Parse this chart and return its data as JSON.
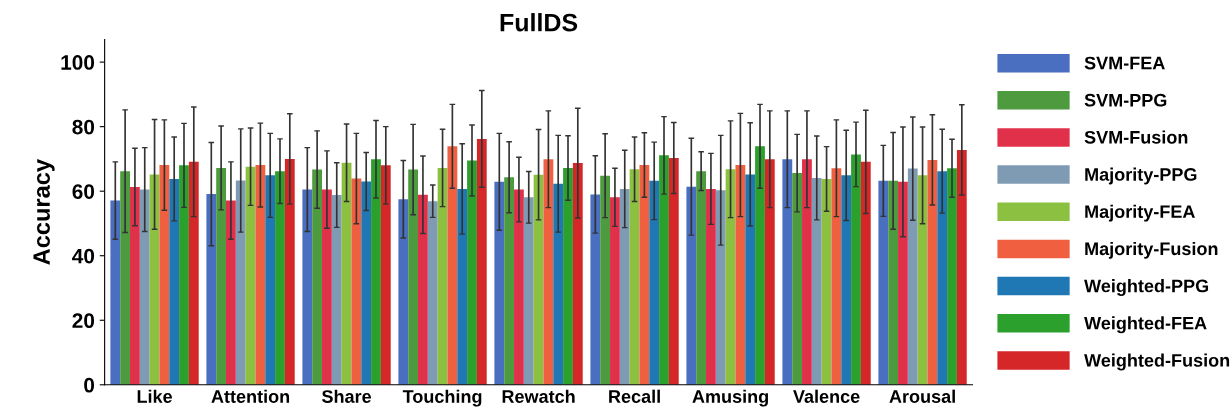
{
  "chart_data": {
    "type": "bar",
    "title": "FullDS",
    "ylabel": "Accuracy",
    "categories": [
      "Like",
      "Attention",
      "Share",
      "Touching",
      "Rewatch",
      "Recall",
      "Amusing",
      "Valence",
      "Arousal"
    ],
    "ylim": [
      0,
      107
    ],
    "yticks": [
      0,
      20,
      40,
      60,
      80,
      100
    ],
    "grid": false,
    "legend": "right",
    "series": [
      {
        "name": "SVM-FEA",
        "color": "#4a6fc0",
        "values": [
          57.1,
          59.1,
          60.5,
          57.5,
          62.9,
          59.0,
          61.4,
          69.9,
          63.2
        ],
        "errors": [
          12,
          16,
          13,
          12,
          15,
          12,
          15,
          15,
          11
        ]
      },
      {
        "name": "SVM-PPG",
        "color": "#4e9a3e",
        "values": [
          66.2,
          67.2,
          66.7,
          66.7,
          64.3,
          64.8,
          66.2,
          65.6,
          63.2
        ],
        "errors": [
          19,
          13,
          12,
          14,
          11,
          13,
          6,
          12,
          15
        ]
      },
      {
        "name": "SVM-Fusion",
        "color": "#e0304a",
        "values": [
          61.3,
          57.1,
          60.5,
          58.9,
          60.5,
          58.1,
          60.7,
          69.9,
          62.9
        ],
        "errors": [
          12,
          12,
          12,
          12,
          10,
          9,
          11,
          15,
          17
        ]
      },
      {
        "name": "Majority-PPG",
        "color": "#7f9bb3",
        "values": [
          60.5,
          63.3,
          58.8,
          56.9,
          58.1,
          60.7,
          60.3,
          64.1,
          67.0
        ],
        "errors": [
          13,
          16,
          10,
          5,
          8,
          12,
          17,
          13,
          16
        ]
      },
      {
        "name": "Majority-FEA",
        "color": "#8cc040",
        "values": [
          65.2,
          67.6,
          68.8,
          67.2,
          65.1,
          66.8,
          66.8,
          63.8,
          64.9
        ],
        "errors": [
          17,
          12,
          12,
          12,
          14,
          10,
          15,
          10,
          15
        ]
      },
      {
        "name": "Majority-Fusion",
        "color": "#f06040",
        "values": [
          68.1,
          68.1,
          63.9,
          73.9,
          69.9,
          68.1,
          68.1,
          67.1,
          69.7
        ],
        "errors": [
          14,
          13,
          14,
          13,
          15,
          10,
          16,
          15,
          14
        ]
      },
      {
        "name": "Weighted-PPG",
        "color": "#1f77b4",
        "values": [
          63.8,
          64.9,
          63.0,
          60.7,
          62.3,
          63.2,
          65.2,
          64.9,
          66.2
        ],
        "errors": [
          13,
          13,
          9,
          14,
          15,
          12,
          16,
          14,
          13
        ]
      },
      {
        "name": "Weighted-FEA",
        "color": "#2ca02c",
        "values": [
          68.0,
          66.2,
          69.9,
          69.5,
          67.2,
          71.1,
          73.9,
          71.4,
          67.1
        ],
        "errors": [
          13,
          10,
          12,
          11,
          10,
          12,
          13,
          10,
          9
        ]
      },
      {
        "name": "Weighted-Fusion",
        "color": "#d62728",
        "values": [
          69.1,
          70.0,
          68.0,
          76.2,
          68.7,
          70.3,
          69.9,
          69.1,
          72.8
        ],
        "errors": [
          17,
          14,
          12,
          15,
          17,
          11,
          15,
          16,
          14
        ]
      }
    ]
  }
}
